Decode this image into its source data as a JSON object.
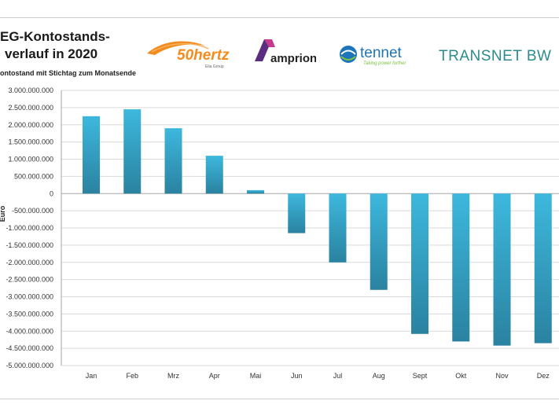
{
  "header": {
    "title_line1": "EG-Kontostands-",
    "title_line2": "verlauf in 2020",
    "subtitle": "ontostand mit Stichtag zum Monatsende"
  },
  "logos": {
    "hertz_main": "50hertz",
    "hertz_sub": "Elia Group",
    "amprion": "amprion",
    "tennet_main": "tennet",
    "tennet_sub": "Taking power further",
    "transnet": "TRANSNET BW"
  },
  "colors": {
    "bar_top": "#3db8dd",
    "bar_bottom": "#2a82a0",
    "grid": "#d9d9d9",
    "hertz_orange": "#f28c1e",
    "amprion_purple": "#5a2d82",
    "tennet_blue": "#1e74b8",
    "transnet_teal": "#2a8c8c"
  },
  "chart_data": {
    "type": "bar",
    "title": "",
    "xlabel": "",
    "ylabel": "Euro",
    "ylim": [
      -5000000000,
      3000000000
    ],
    "grid": true,
    "categories": [
      "Jan",
      "Feb",
      "Mrz",
      "Apr",
      "Mai",
      "Jun",
      "Jul",
      "Aug",
      "Sept",
      "Okt",
      "Nov",
      "Dez"
    ],
    "values": [
      2250000000,
      2450000000,
      1900000000,
      1100000000,
      100000000,
      -1150000000,
      -2000000000,
      -2800000000,
      -4080000000,
      -4300000000,
      -4420000000,
      -4350000000
    ],
    "yticks": [
      {
        "value": 3000000000,
        "label": "3.000.000.000"
      },
      {
        "value": 2500000000,
        "label": "2.500.000.000"
      },
      {
        "value": 2000000000,
        "label": "2.000.000.000"
      },
      {
        "value": 1500000000,
        "label": "1.500.000.000"
      },
      {
        "value": 1000000000,
        "label": "1.000.000.000"
      },
      {
        "value": 500000000,
        "label": "500.000.000"
      },
      {
        "value": 0,
        "label": "0"
      },
      {
        "value": -500000000,
        "label": "-500.000.000"
      },
      {
        "value": -1000000000,
        "label": "-1.000.000.000"
      },
      {
        "value": -1500000000,
        "label": "-1.500.000.000"
      },
      {
        "value": -2000000000,
        "label": "-2.000.000.000"
      },
      {
        "value": -2500000000,
        "label": "-2.500.000.000"
      },
      {
        "value": -3000000000,
        "label": "-3.000.000.000"
      },
      {
        "value": -3500000000,
        "label": "-3.500.000.000"
      },
      {
        "value": -4000000000,
        "label": "-4.000.000.000"
      },
      {
        "value": -4500000000,
        "label": "-4.500.000.000"
      },
      {
        "value": -5000000000,
        "label": "-5.000.000.000"
      }
    ]
  }
}
